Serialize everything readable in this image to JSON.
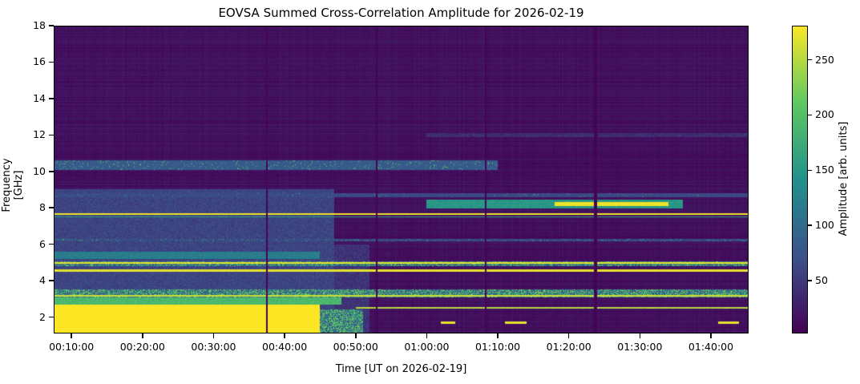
{
  "chart_data": {
    "type": "heatmap",
    "title": "EOVSA Summed Cross-Correlation Amplitude for 2026-02-19",
    "xlabel": "Time [UT on 2026-02-19]",
    "ylabel": "Frequency [GHz]",
    "colorbar_label": "Amplitude [arb. units]",
    "colormap": "viridis",
    "colormap_stops": [
      "#440154",
      "#3b528b",
      "#21918c",
      "#5ec962",
      "#fde725"
    ],
    "xlim_minutes": [
      7.5,
      105.3
    ],
    "ylim": [
      1.1,
      18
    ],
    "clim": [
      2,
      281
    ],
    "x_ticks": [
      {
        "value": 10,
        "label": "00:10:00"
      },
      {
        "value": 20,
        "label": "00:20:00"
      },
      {
        "value": 30,
        "label": "00:30:00"
      },
      {
        "value": 40,
        "label": "00:40:00"
      },
      {
        "value": 50,
        "label": "00:50:00"
      },
      {
        "value": 60,
        "label": "01:00:00"
      },
      {
        "value": 70,
        "label": "01:10:00"
      },
      {
        "value": 80,
        "label": "01:20:00"
      },
      {
        "value": 90,
        "label": "01:30:00"
      },
      {
        "value": 100,
        "label": "01:40:00"
      }
    ],
    "y_ticks": [
      {
        "value": 2,
        "label": "2"
      },
      {
        "value": 4,
        "label": "4"
      },
      {
        "value": 6,
        "label": "6"
      },
      {
        "value": 8,
        "label": "8"
      },
      {
        "value": 10,
        "label": "10"
      },
      {
        "value": 12,
        "label": "12"
      },
      {
        "value": 14,
        "label": "14"
      },
      {
        "value": 16,
        "label": "16"
      },
      {
        "value": 18,
        "label": "18"
      }
    ],
    "colorbar_ticks": [
      {
        "value": 50,
        "label": "50"
      },
      {
        "value": 100,
        "label": "100"
      },
      {
        "value": 150,
        "label": "150"
      },
      {
        "value": 200,
        "label": "200"
      },
      {
        "value": 250,
        "label": "250"
      }
    ],
    "background_amplitude": 15,
    "features": [
      {
        "t": [
          7.5,
          47
        ],
        "f": [
          1.1,
          9
        ],
        "amp": 60,
        "speckle": 0
      },
      {
        "t": [
          47,
          52
        ],
        "f": [
          1.1,
          6
        ],
        "amp": 45,
        "speckle": 0
      },
      {
        "t": [
          7.5,
          45
        ],
        "f": [
          5.2,
          5.6
        ],
        "amp": 120,
        "speckle": 0
      },
      {
        "t": [
          7.5,
          48
        ],
        "f": [
          2.7,
          3.1
        ],
        "amp": 190,
        "speckle": 0
      },
      {
        "t": [
          7.5,
          45
        ],
        "f": [
          1.1,
          2.7
        ],
        "amp": 281,
        "speckle": 0
      },
      {
        "t": [
          45,
          51
        ],
        "f": [
          1.1,
          2.4
        ],
        "amp": 240,
        "speckle": 0.5
      },
      {
        "t": [
          7.5,
          105.3
        ],
        "f": [
          3.1,
          3.5
        ],
        "amp": 240,
        "speckle": 0.5
      },
      {
        "t": [
          7.5,
          105.3
        ],
        "f": [
          3.12,
          3.2
        ],
        "amp": 260,
        "speckle": 0
      },
      {
        "t": [
          7.5,
          105.3
        ],
        "f": [
          4.5,
          4.62
        ],
        "amp": 270,
        "speckle": 0
      },
      {
        "t": [
          7.5,
          105.3
        ],
        "f": [
          4.8,
          5.08
        ],
        "amp": 230,
        "speckle": 0.45
      },
      {
        "t": [
          7.5,
          105.3
        ],
        "f": [
          4.95,
          5.02
        ],
        "amp": 270,
        "speckle": 0
      },
      {
        "t": [
          7.5,
          105.3
        ],
        "f": [
          6.15,
          6.3
        ],
        "amp": 170,
        "speckle": 0.15
      },
      {
        "t": [
          7.5,
          105.3
        ],
        "f": [
          7.48,
          7.54
        ],
        "amp": 160,
        "speckle": 0
      },
      {
        "t": [
          7.5,
          105.3
        ],
        "f": [
          7.6,
          7.68
        ],
        "amp": 275,
        "speckle": 0
      },
      {
        "t": [
          60,
          96
        ],
        "f": [
          7.95,
          8.45
        ],
        "amp": 150,
        "speckle": 0
      },
      {
        "t": [
          78,
          94
        ],
        "f": [
          8.1,
          8.3
        ],
        "amp": 275,
        "speckle": 0
      },
      {
        "t": [
          50,
          105.3
        ],
        "f": [
          2.45,
          2.55
        ],
        "amp": 250,
        "speckle": 0
      },
      {
        "t": [
          7.5,
          70
        ],
        "f": [
          10.1,
          10.6
        ],
        "amp": 230,
        "speckle": 0.06
      },
      {
        "t": [
          7.5,
          105.3
        ],
        "f": [
          8.6,
          8.8
        ],
        "amp": 180,
        "speckle": 0.03
      },
      {
        "t": [
          60,
          105.3
        ],
        "f": [
          11.9,
          12.1
        ],
        "amp": 40,
        "speckle": 0
      },
      {
        "t": [
          62,
          64
        ],
        "f": [
          1.65,
          1.75
        ],
        "amp": 270,
        "speckle": 0
      },
      {
        "t": [
          71,
          74
        ],
        "f": [
          1.65,
          1.75
        ],
        "amp": 270,
        "speckle": 0
      },
      {
        "t": [
          101,
          104
        ],
        "f": [
          1.65,
          1.75
        ],
        "amp": 270,
        "speckle": 0
      }
    ],
    "dropouts_minutes": [
      37.5,
      53.0,
      68.3,
      83.6,
      83.9
    ]
  }
}
